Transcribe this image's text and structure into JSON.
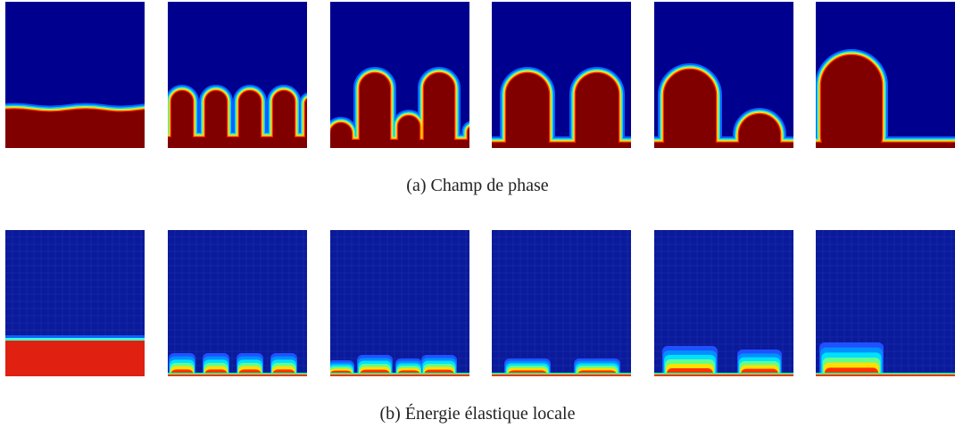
{
  "figure": {
    "subcaptions": [
      "(a) Champ de phase",
      "(b) Énergie élastique locale"
    ]
  }
}
